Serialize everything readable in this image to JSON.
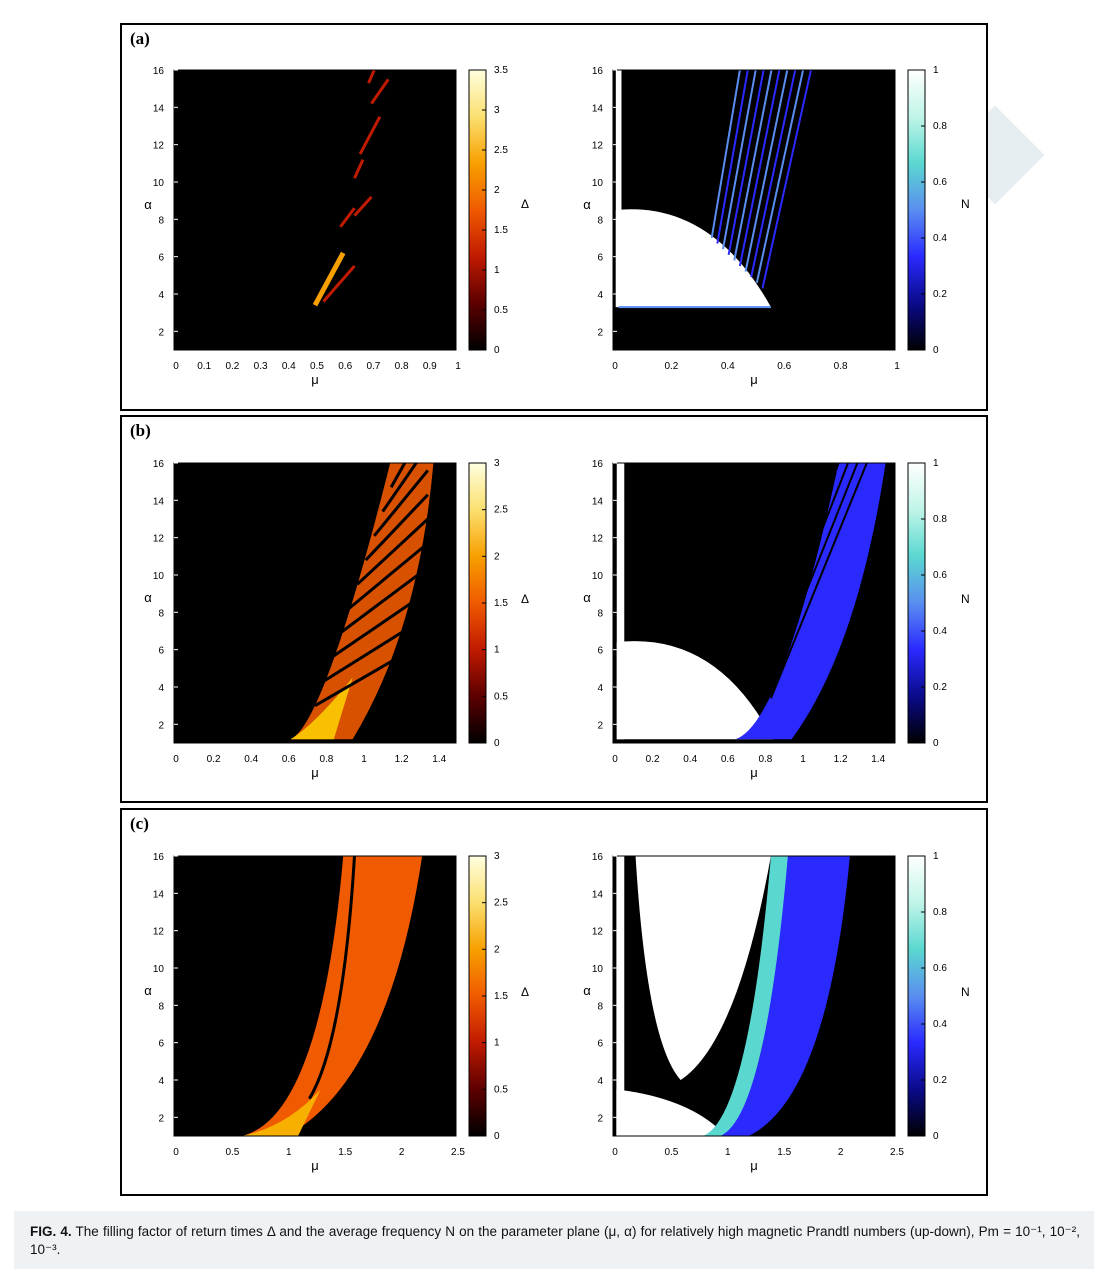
{
  "caption": {
    "fig_label": "FIG. 4.",
    "text": " The filling factor of return times Δ and the average frequency N on the parameter plane (μ, α) for relatively high magnetic Prandtl numbers (up-down), Pm = 10⁻¹, 10⁻², 10⁻³."
  },
  "chart_data": [
    {
      "panel_label": "(a)",
      "type": "heatmap",
      "xlabel": "μ",
      "ylabel": "α",
      "colorbar_label": "Δ",
      "xlim": [
        0,
        1
      ],
      "ylim": [
        1,
        16
      ],
      "xticks": [
        "0",
        "0.1",
        "0.2",
        "0.3",
        "0.4",
        "0.5",
        "0.6",
        "0.7",
        "0.8",
        "0.9",
        "1"
      ],
      "yticks": [
        "2",
        "4",
        "6",
        "8",
        "10",
        "12",
        "14",
        "16"
      ],
      "colorbar_ticks": [
        "0",
        "0.5",
        "1",
        "1.5",
        "2",
        "2.5",
        "3",
        "3.5"
      ],
      "colorbar_range": [
        0,
        3.5
      ],
      "colormap": [
        "#000000",
        "#5c0000",
        "#c01a00",
        "#f05a00",
        "#f8a000",
        "#fbe070",
        "#ffffe0"
      ]
    },
    {
      "panel_label": "",
      "type": "heatmap",
      "xlabel": "μ",
      "ylabel": "α",
      "colorbar_label": "N",
      "xlim": [
        0,
        1
      ],
      "ylim": [
        1,
        16
      ],
      "xticks": [
        "0",
        "0.2",
        "0.4",
        "0.6",
        "0.8",
        "1"
      ],
      "yticks": [
        "2",
        "4",
        "6",
        "8",
        "10",
        "12",
        "14",
        "16"
      ],
      "colorbar_ticks": [
        "0",
        "0.2",
        "0.4",
        "0.6",
        "0.8",
        "1"
      ],
      "colorbar_range": [
        0,
        1
      ],
      "colormap": [
        "#000000",
        "#0a0a8a",
        "#2a2aff",
        "#5a8ef0",
        "#5ad8d0",
        "#c0f5e8",
        "#ffffff"
      ]
    },
    {
      "panel_label": "(b)",
      "type": "heatmap",
      "xlabel": "μ",
      "ylabel": "α",
      "colorbar_label": "Δ",
      "xlim": [
        0,
        1.5
      ],
      "ylim": [
        1,
        16
      ],
      "xticks": [
        "0",
        "0.2",
        "0.4",
        "0.6",
        "0.8",
        "1",
        "1.2",
        "1.4"
      ],
      "yticks": [
        "2",
        "4",
        "6",
        "8",
        "10",
        "12",
        "14",
        "16"
      ],
      "colorbar_ticks": [
        "0",
        "0.5",
        "1",
        "1.5",
        "2",
        "2.5",
        "3"
      ],
      "colorbar_range": [
        0,
        3
      ],
      "colormap": [
        "#000000",
        "#5c0000",
        "#c01a00",
        "#f05a00",
        "#f8a000",
        "#fbe070",
        "#ffffe0"
      ]
    },
    {
      "panel_label": "",
      "type": "heatmap",
      "xlabel": "μ",
      "ylabel": "α",
      "colorbar_label": "N",
      "xlim": [
        0,
        1.5
      ],
      "ylim": [
        1,
        16
      ],
      "xticks": [
        "0",
        "0.2",
        "0.4",
        "0.6",
        "0.8",
        "1",
        "1.2",
        "1.4"
      ],
      "yticks": [
        "2",
        "4",
        "6",
        "8",
        "10",
        "12",
        "14",
        "16"
      ],
      "colorbar_ticks": [
        "0",
        "0.2",
        "0.4",
        "0.6",
        "0.8",
        "1"
      ],
      "colorbar_range": [
        0,
        1
      ],
      "colormap": [
        "#000000",
        "#0a0a8a",
        "#2a2aff",
        "#5a8ef0",
        "#5ad8d0",
        "#c0f5e8",
        "#ffffff"
      ]
    },
    {
      "panel_label": "(c)",
      "type": "heatmap",
      "xlabel": "μ",
      "ylabel": "α",
      "colorbar_label": "Δ",
      "xlim": [
        0,
        2.5
      ],
      "ylim": [
        1,
        16
      ],
      "xticks": [
        "0",
        "0.5",
        "1",
        "1.5",
        "2",
        "2.5"
      ],
      "yticks": [
        "2",
        "4",
        "6",
        "8",
        "10",
        "12",
        "14",
        "16"
      ],
      "colorbar_ticks": [
        "0",
        "0.5",
        "1",
        "1.5",
        "2",
        "2.5",
        "3"
      ],
      "colorbar_range": [
        0,
        3
      ],
      "colormap": [
        "#000000",
        "#5c0000",
        "#c01a00",
        "#f05a00",
        "#f8a000",
        "#fbe070",
        "#ffffe0"
      ]
    },
    {
      "panel_label": "",
      "type": "heatmap",
      "xlabel": "μ",
      "ylabel": "α",
      "colorbar_label": "N",
      "xlim": [
        0,
        2.5
      ],
      "ylim": [
        1,
        16
      ],
      "xticks": [
        "0",
        "0.5",
        "1",
        "1.5",
        "2",
        "2.5"
      ],
      "yticks": [
        "2",
        "4",
        "6",
        "8",
        "10",
        "12",
        "14",
        "16"
      ],
      "colorbar_ticks": [
        "0",
        "0.2",
        "0.4",
        "0.6",
        "0.8",
        "1"
      ],
      "colorbar_range": [
        0,
        1
      ],
      "colormap": [
        "#000000",
        "#0a0a8a",
        "#2a2aff",
        "#5a8ef0",
        "#5ad8d0",
        "#c0f5e8",
        "#ffffff"
      ]
    }
  ]
}
